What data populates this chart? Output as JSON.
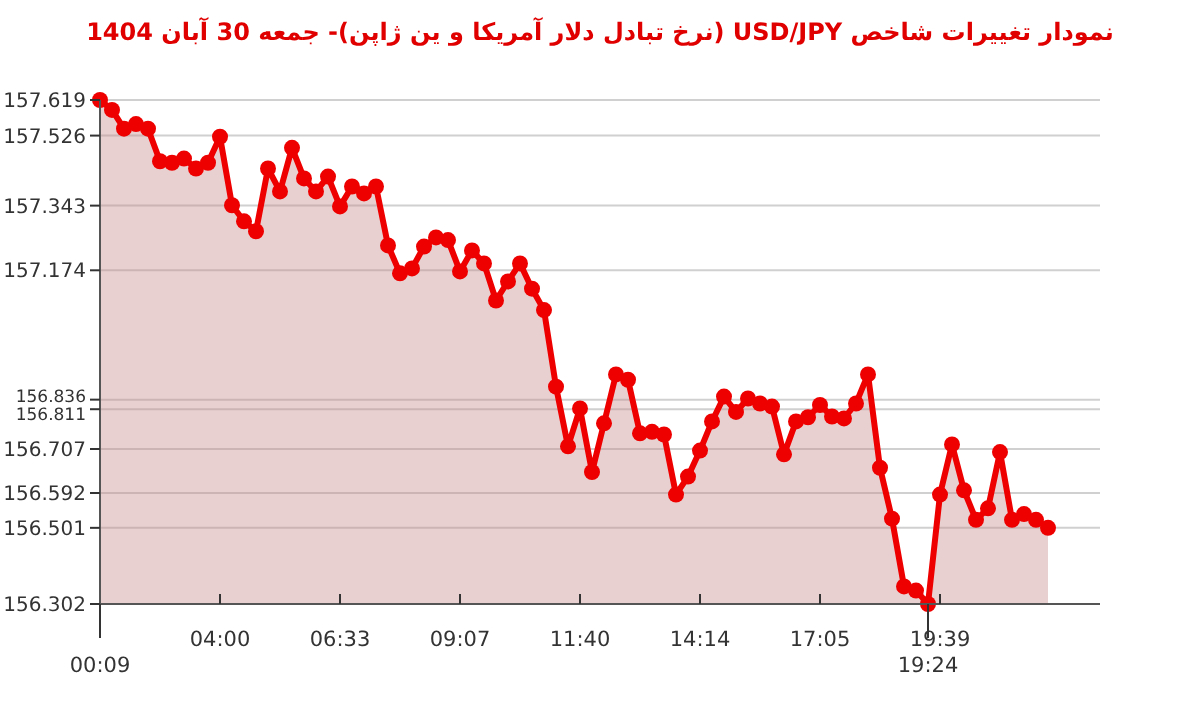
{
  "chart_data": {
    "type": "area",
    "title": "نمودار تغییرات شاخص USD/JPY (نرخ تبادل دلار آمریکا و ین ژاپن)- جمعه  30 آبان 1404",
    "categories": [
      "00:09",
      null,
      null,
      null,
      null,
      null,
      null,
      null,
      null,
      null,
      "04:00",
      null,
      null,
      null,
      null,
      null,
      null,
      null,
      null,
      null,
      "06:33",
      null,
      null,
      null,
      null,
      null,
      null,
      null,
      null,
      null,
      "09:07",
      null,
      null,
      null,
      null,
      null,
      null,
      null,
      null,
      null,
      "11:40",
      null,
      null,
      null,
      null,
      null,
      null,
      null,
      null,
      null,
      "14:14",
      null,
      null,
      null,
      null,
      null,
      null,
      null,
      null,
      null,
      "17:05",
      null,
      null,
      null,
      null,
      null,
      null,
      null,
      null,
      "19:24",
      "19:39",
      null,
      null,
      null,
      null,
      null,
      null,
      null,
      null,
      null
    ],
    "series": [
      {
        "color": "#ee0000",
        "values": [
          157.619,
          157.593,
          157.544,
          157.556,
          157.544,
          157.459,
          157.455,
          157.466,
          157.44,
          157.455,
          157.523,
          157.344,
          157.302,
          157.276,
          157.44,
          157.38,
          157.494,
          157.414,
          157.38,
          157.419,
          157.341,
          157.393,
          157.375,
          157.393,
          157.239,
          157.166,
          157.179,
          157.236,
          157.26,
          157.253,
          157.171,
          157.226,
          157.192,
          157.095,
          157.145,
          157.192,
          157.126,
          157.07,
          156.87,
          156.714,
          156.813,
          156.647,
          156.774,
          156.902,
          156.888,
          156.748,
          156.752,
          156.745,
          156.588,
          156.635,
          156.703,
          156.779,
          156.844,
          156.804,
          156.839,
          156.826,
          156.818,
          156.693,
          156.779,
          156.79,
          156.822,
          156.792,
          156.787,
          156.826,
          156.902,
          156.658,
          156.525,
          156.348,
          156.337,
          156.302,
          156.588,
          156.719,
          156.599,
          156.522,
          156.552,
          156.699,
          156.522,
          156.537,
          156.522,
          156.501
        ]
      }
    ],
    "ylim": [
      156.302,
      157.619
    ],
    "yticks": [
      156.302,
      156.501,
      156.592,
      156.707,
      156.811,
      156.836,
      157.174,
      157.343,
      157.526,
      157.619
    ],
    "grid": "y",
    "marker": "circle",
    "line_style": "solid"
  }
}
